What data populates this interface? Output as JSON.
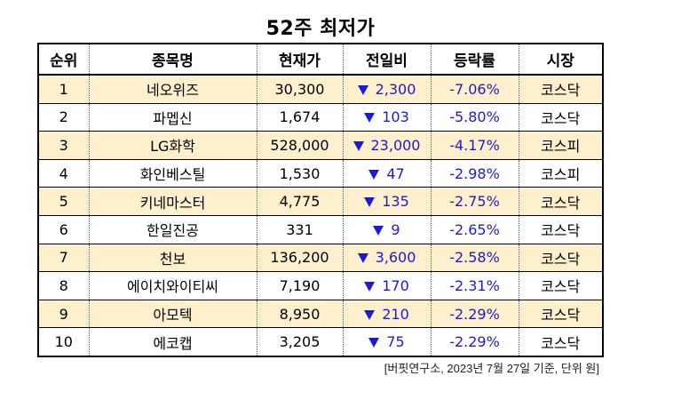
{
  "title": "52주 최저가",
  "headers": [
    "순위",
    "종목명",
    "현재가",
    "전일비",
    "등락률",
    "시장"
  ],
  "rows": [
    {
      "rank": "1",
      "name": "네오위즈",
      "price": "30,300",
      "change": "2,300",
      "rate": "-7.06%",
      "market": "코스닥"
    },
    {
      "rank": "2",
      "name": "파멥신",
      "price": "1,674",
      "change": "103",
      "rate": "-5.80%",
      "market": "코스닥"
    },
    {
      "rank": "3",
      "name": "LG화학",
      "price": "528,000",
      "change": "23,000",
      "rate": "-4.17%",
      "market": "코스피"
    },
    {
      "rank": "4",
      "name": "화인베스틸",
      "price": "1,530",
      "change": "47",
      "rate": "-2.98%",
      "market": "코스피"
    },
    {
      "rank": "5",
      "name": "키네마스터",
      "price": "4,775",
      "change": "135",
      "rate": "-2.75%",
      "market": "코스닥"
    },
    {
      "rank": "6",
      "name": "한일진공",
      "price": "331",
      "change": "9",
      "rate": "-2.65%",
      "market": "코스닥"
    },
    {
      "rank": "7",
      "name": "천보",
      "price": "136,200",
      "change": "3,600",
      "rate": "-2.58%",
      "market": "코스닥"
    },
    {
      "rank": "8",
      "name": "에이치와이티씨",
      "price": "7,190",
      "change": "170",
      "rate": "-2.31%",
      "market": "코스닥"
    },
    {
      "rank": "9",
      "name": "아모텍",
      "price": "8,950",
      "change": "210",
      "rate": "-2.29%",
      "market": "코스닥"
    },
    {
      "rank": "10",
      "name": "에코캡",
      "price": "3,205",
      "change": "75",
      "rate": "-2.29%",
      "market": "코스닥"
    }
  ],
  "source": "[버핏연구소, 2023년 7월 27일 기준, 단위 원]",
  "colors": {
    "shaded_row": "#fef0cc",
    "down": "#1a1ad9"
  },
  "icons": {
    "change_direction": "down-triangle-icon"
  }
}
